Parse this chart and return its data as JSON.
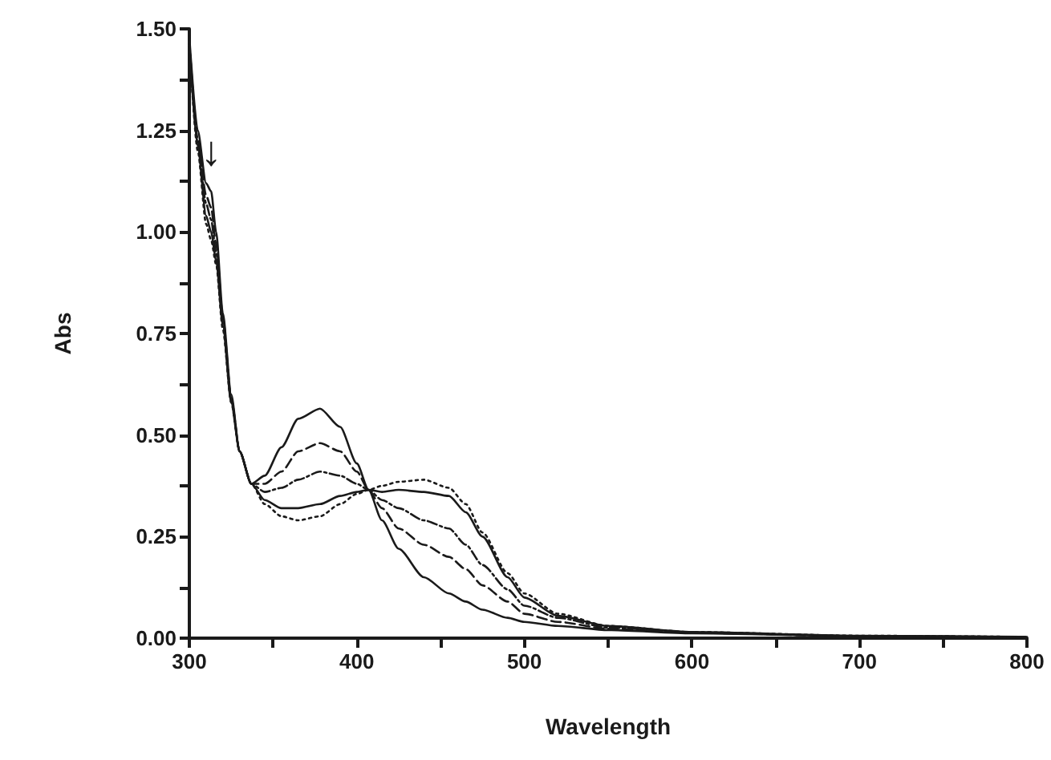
{
  "chart_data": {
    "type": "line",
    "xlabel": "Wavelength",
    "ylabel": "Abs",
    "x": [
      300,
      305,
      310,
      313,
      316,
      320,
      325,
      330,
      337,
      345,
      355,
      365,
      378,
      390,
      400,
      407,
      415,
      425,
      440,
      455,
      465,
      475,
      490,
      500,
      520,
      550,
      600,
      700,
      800
    ],
    "series": [
      {
        "color": "#1a1a1a",
        "line_style": "solid",
        "values": [
          1.48,
          1.25,
          1.12,
          1.1,
          1.0,
          0.8,
          0.6,
          0.46,
          0.38,
          0.4,
          0.47,
          0.54,
          0.565,
          0.52,
          0.43,
          0.365,
          0.29,
          0.22,
          0.15,
          0.11,
          0.09,
          0.07,
          0.05,
          0.04,
          0.03,
          0.02,
          0.012,
          0.005,
          0.002
        ]
      },
      {
        "color": "#1a1a1a",
        "line_style": "dashed",
        "values": [
          1.47,
          1.23,
          1.09,
          1.06,
          0.97,
          0.79,
          0.59,
          0.46,
          0.38,
          0.38,
          0.41,
          0.46,
          0.48,
          0.46,
          0.41,
          0.365,
          0.32,
          0.27,
          0.23,
          0.2,
          0.17,
          0.13,
          0.09,
          0.06,
          0.04,
          0.023,
          0.013,
          0.005,
          0.002
        ]
      },
      {
        "color": "#1a1a1a",
        "line_style": "dashdot",
        "values": [
          1.47,
          1.22,
          1.07,
          1.03,
          0.95,
          0.78,
          0.59,
          0.46,
          0.38,
          0.36,
          0.37,
          0.39,
          0.41,
          0.4,
          0.38,
          0.365,
          0.34,
          0.32,
          0.29,
          0.27,
          0.23,
          0.18,
          0.12,
          0.08,
          0.05,
          0.026,
          0.014,
          0.005,
          0.003
        ]
      },
      {
        "color": "#1a1a1a",
        "line_style": "solid",
        "values": [
          1.46,
          1.21,
          1.04,
          1.0,
          0.93,
          0.77,
          0.58,
          0.46,
          0.38,
          0.34,
          0.32,
          0.32,
          0.33,
          0.35,
          0.36,
          0.365,
          0.36,
          0.365,
          0.36,
          0.35,
          0.31,
          0.25,
          0.15,
          0.1,
          0.055,
          0.03,
          0.015,
          0.006,
          0.003
        ]
      },
      {
        "color": "#1a1a1a",
        "line_style": "dotted",
        "values": [
          1.46,
          1.2,
          1.02,
          0.98,
          0.92,
          0.76,
          0.58,
          0.46,
          0.38,
          0.33,
          0.3,
          0.29,
          0.3,
          0.33,
          0.355,
          0.365,
          0.375,
          0.385,
          0.39,
          0.37,
          0.33,
          0.26,
          0.16,
          0.11,
          0.06,
          0.03,
          0.015,
          0.006,
          0.003
        ]
      }
    ],
    "xlim": [
      300,
      800
    ],
    "xticks": [
      300,
      {
        "value": 350,
        "label": null
      },
      400,
      {
        "value": 450,
        "label": null
      },
      500,
      {
        "value": 550,
        "label": null
      },
      600,
      {
        "value": 650,
        "label": null
      },
      700,
      {
        "value": 750,
        "label": null
      },
      800
    ],
    "ylim": [
      0,
      1.5
    ],
    "yticks": [
      {
        "value": 0,
        "label": "0.00"
      },
      {
        "value": 0.125,
        "label": null
      },
      {
        "value": 0.25,
        "label": "0.25"
      },
      {
        "value": 0.375,
        "label": null
      },
      {
        "value": 0.5,
        "label": "0.50"
      },
      {
        "value": 0.625,
        "label": null
      },
      {
        "value": 0.75,
        "label": "0.75"
      },
      {
        "value": 0.875,
        "label": null
      },
      {
        "value": 1,
        "label": "1.00"
      },
      {
        "value": 1.125,
        "label": null
      },
      {
        "value": 1.25,
        "label": "1.25"
      },
      {
        "value": 1.375,
        "label": null
      },
      {
        "value": 1.5,
        "label": "1.50"
      }
    ],
    "annotations": [
      {
        "text": "↓",
        "x": 313,
        "y": 1.12
      }
    ],
    "grid": false,
    "marker": "none"
  }
}
